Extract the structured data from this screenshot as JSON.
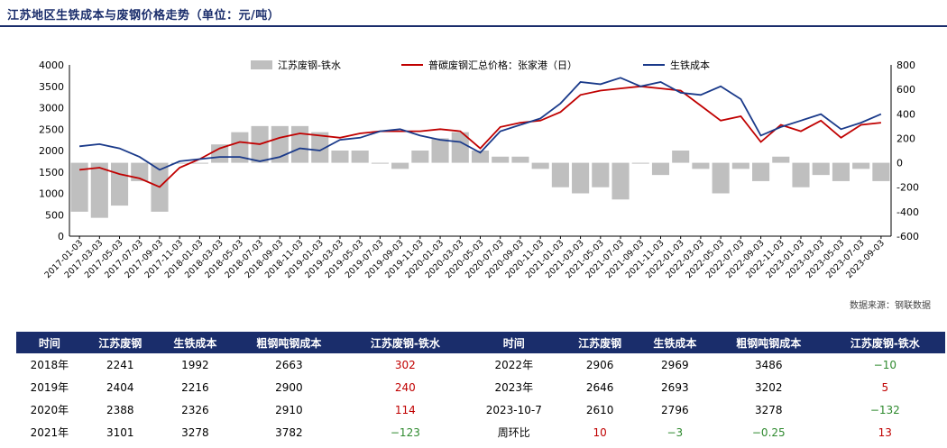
{
  "title": "江苏地区生铁成本与废钢价格走势（单位：元/吨）",
  "source": "数据来源：钢联数据",
  "colors": {
    "bar": "#bfbfbf",
    "red": "#c00000",
    "blue": "#1a3a8a",
    "header": "#1a2d6b"
  },
  "chart_data": {
    "type": "line",
    "legend": [
      "江苏废钢-铁水",
      "普碳废钢汇总价格：张家港（日）",
      "生铁成本"
    ],
    "left_axis": {
      "ticks": [
        0,
        500,
        1000,
        1500,
        2000,
        2500,
        3000,
        3500,
        4000
      ],
      "ylim": [
        0,
        4000
      ]
    },
    "right_axis": {
      "ticks": [
        -600,
        -400,
        -200,
        0,
        200,
        400,
        600,
        800
      ],
      "ylim": [
        -600,
        800
      ]
    },
    "x_ticks": [
      "2017-01-03",
      "2017-03-03",
      "2017-05-03",
      "2017-07-03",
      "2017-09-03",
      "2017-11-03",
      "2018-01-03",
      "2018-03-03",
      "2018-05-03",
      "2018-07-03",
      "2018-09-03",
      "2018-11-03",
      "2019-01-03",
      "2019-03-03",
      "2019-05-03",
      "2019-07-03",
      "2019-09-03",
      "2019-11-03",
      "2020-01-03",
      "2020-03-03",
      "2020-05-03",
      "2020-07-03",
      "2020-09-03",
      "2020-11-03",
      "2021-01-03",
      "2021-03-03",
      "2021-05-03",
      "2021-07-03",
      "2021-09-03",
      "2021-11-03",
      "2022-01-03",
      "2022-03-03",
      "2022-05-03",
      "2022-07-03",
      "2022-09-03",
      "2022-11-03",
      "2023-01-03",
      "2023-03-03",
      "2023-05-03",
      "2023-07-03",
      "2023-09-03"
    ],
    "series": [
      {
        "name": "普碳废钢汇总价格：张家港（日）",
        "axis": "left",
        "values": [
          1550,
          1600,
          1450,
          1350,
          1150,
          1600,
          1800,
          2050,
          2200,
          2150,
          2300,
          2400,
          2350,
          2300,
          2400,
          2450,
          2450,
          2450,
          2500,
          2450,
          2050,
          2550,
          2650,
          2700,
          2900,
          3300,
          3400,
          3450,
          3500,
          3450,
          3400,
          3050,
          2700,
          2800,
          2200,
          2600,
          2450,
          2700,
          2300,
          2600,
          2650
        ]
      },
      {
        "name": "生铁成本",
        "axis": "left",
        "values": [
          2100,
          2150,
          2050,
          1850,
          1550,
          1750,
          1800,
          1850,
          1850,
          1750,
          1850,
          2050,
          2000,
          2250,
          2300,
          2450,
          2500,
          2350,
          2250,
          2200,
          1950,
          2450,
          2600,
          2750,
          3100,
          3600,
          3550,
          3700,
          3500,
          3600,
          3350,
          3300,
          3500,
          3200,
          2350,
          2550,
          2700,
          2850,
          2500,
          2650,
          2850
        ]
      },
      {
        "name": "江苏废钢-铁水",
        "axis": "right",
        "values": [
          -400,
          -450,
          -350,
          -150,
          -400,
          0,
          0,
          150,
          250,
          300,
          300,
          300,
          250,
          100,
          100,
          0,
          -50,
          100,
          200,
          250,
          100,
          50,
          50,
          -50,
          -200,
          -250,
          -200,
          -300,
          0,
          -100,
          100,
          -50,
          -250,
          -50,
          -150,
          50,
          -200,
          -100,
          -150,
          -50,
          -150
        ]
      }
    ]
  },
  "table": {
    "headers": [
      "时间",
      "江苏废钢",
      "生铁成本",
      "粗钢吨钢成本",
      "江苏废钢-铁水",
      "时间",
      "江苏废钢",
      "生铁成本",
      "粗钢吨钢成本",
      "江苏废钢-铁水"
    ],
    "rows": [
      [
        {
          "v": "2018年"
        },
        {
          "v": "2241"
        },
        {
          "v": "1992"
        },
        {
          "v": "2663"
        },
        {
          "v": "302",
          "c": "red"
        },
        {
          "v": "2022年"
        },
        {
          "v": "2906"
        },
        {
          "v": "2969"
        },
        {
          "v": "3486"
        },
        {
          "v": "−10",
          "c": "green"
        }
      ],
      [
        {
          "v": "2019年"
        },
        {
          "v": "2404"
        },
        {
          "v": "2216"
        },
        {
          "v": "2900"
        },
        {
          "v": "240",
          "c": "red"
        },
        {
          "v": "2023年"
        },
        {
          "v": "2646"
        },
        {
          "v": "2693"
        },
        {
          "v": "3202"
        },
        {
          "v": "5",
          "c": "red"
        }
      ],
      [
        {
          "v": "2020年"
        },
        {
          "v": "2388"
        },
        {
          "v": "2326"
        },
        {
          "v": "2910"
        },
        {
          "v": "114",
          "c": "red"
        },
        {
          "v": "2023-10-7"
        },
        {
          "v": "2610"
        },
        {
          "v": "2796"
        },
        {
          "v": "3278"
        },
        {
          "v": "−132",
          "c": "green"
        }
      ],
      [
        {
          "v": "2021年"
        },
        {
          "v": "3101"
        },
        {
          "v": "3278"
        },
        {
          "v": "3782"
        },
        {
          "v": "−123",
          "c": "green"
        },
        {
          "v": "周环比"
        },
        {
          "v": "10",
          "c": "red"
        },
        {
          "v": "−3",
          "c": "green"
        },
        {
          "v": "−0.25",
          "c": "green"
        },
        {
          "v": "13",
          "c": "red"
        }
      ]
    ]
  }
}
